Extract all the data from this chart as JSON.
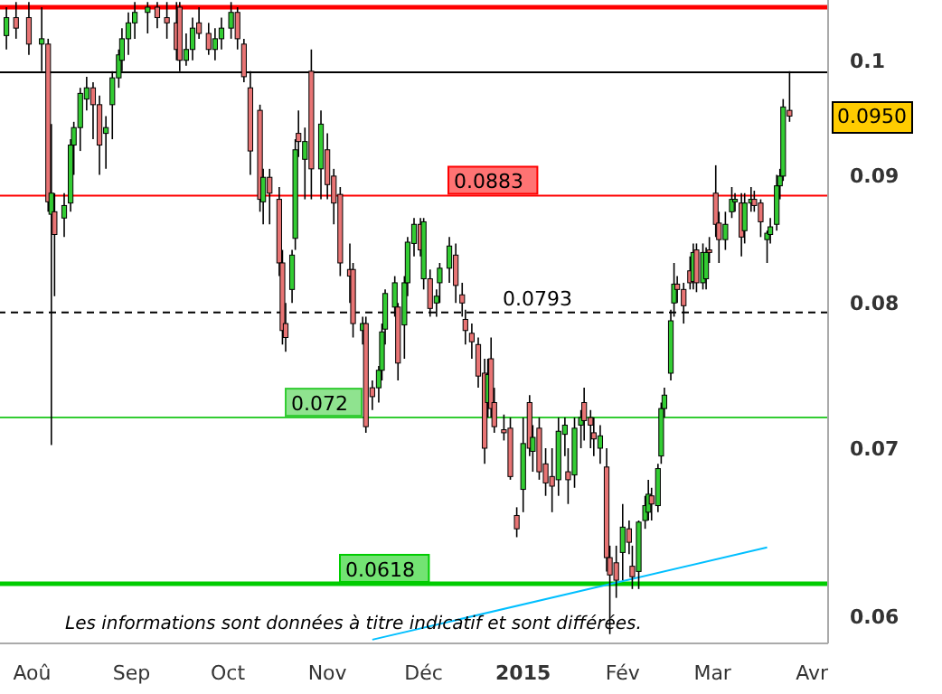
{
  "chart_data": {
    "type": "candlestick",
    "log": "y",
    "x": [
      "2014-07-24",
      "2014-07-27",
      "2014-07-31",
      "2014-08-04",
      "2014-08-06",
      "2014-08-07",
      "2014-08-08",
      "2014-08-11",
      "2014-08-13",
      "2014-08-14",
      "2014-08-16",
      "2014-08-18",
      "2014-08-20",
      "2014-08-22",
      "2014-08-24",
      "2014-08-26",
      "2014-08-28",
      "2014-08-29",
      "2014-08-31",
      "2014-09-02",
      "2014-09-06",
      "2014-09-09",
      "2014-09-12",
      "2014-09-15",
      "2014-09-16",
      "2014-09-18",
      "2014-09-20",
      "2014-09-22",
      "2014-09-25",
      "2014-09-27",
      "2014-09-29",
      "2014-10-02",
      "2014-10-04",
      "2014-10-06",
      "2014-10-08",
      "2014-10-11",
      "2014-10-12",
      "2014-10-14",
      "2014-10-17",
      "2014-10-18",
      "2014-10-19",
      "2014-10-21",
      "2014-10-22",
      "2014-10-23",
      "2014-10-25",
      "2014-10-27",
      "2014-10-30",
      "2014-11-01",
      "2014-11-03",
      "2014-11-05",
      "2014-11-08",
      "2014-11-09",
      "2014-11-12",
      "2014-11-13",
      "2014-11-15",
      "2014-11-17",
      "2014-11-18",
      "2014-11-19",
      "2014-11-22",
      "2014-11-23",
      "2014-11-25",
      "2014-11-26",
      "2014-11-28",
      "2014-11-30",
      "2014-12-01",
      "2014-12-03",
      "2014-12-05",
      "2014-12-06",
      "2014-12-09",
      "2014-12-11",
      "2014-12-13",
      "2014-12-14",
      "2014-12-16",
      "2014-12-18",
      "2014-12-20",
      "2014-12-21",
      "2014-12-22",
      "2014-12-23",
      "2014-12-26",
      "2014-12-28",
      "2014-12-30",
      "2015-01-01",
      "2015-01-03",
      "2015-01-04",
      "2015-01-06",
      "2015-01-08",
      "2015-01-10",
      "2015-01-12",
      "2015-01-14",
      "2015-01-15",
      "2015-01-17",
      "2015-01-19",
      "2015-01-20",
      "2015-01-22",
      "2015-01-23",
      "2015-01-25",
      "2015-01-27",
      "2015-01-28",
      "2015-01-30",
      "2015-02-01",
      "2015-02-03",
      "2015-02-04",
      "2015-02-06",
      "2015-02-08",
      "2015-02-09",
      "2015-02-10",
      "2015-02-12",
      "2015-02-13",
      "2015-02-14",
      "2015-02-16",
      "2015-02-17",
      "2015-02-18",
      "2015-02-20",
      "2015-02-22",
      "2015-02-23",
      "2015-02-24",
      "2015-02-26",
      "2015-02-27",
      "2015-02-28",
      "2015-03-02",
      "2015-03-03",
      "2015-03-05",
      "2015-03-07",
      "2015-03-08",
      "2015-03-10",
      "2015-03-11",
      "2015-03-13",
      "2015-03-14",
      "2015-03-16",
      "2015-03-18",
      "2015-03-19",
      "2015-03-21",
      "2015-03-22",
      "2015-03-23",
      "2015-03-25"
    ],
    "ohlc": [
      [
        0.1023,
        0.105,
        0.101,
        0.104
      ],
      [
        0.104,
        0.1055,
        0.102,
        0.103
      ],
      [
        0.104,
        0.1055,
        0.1005,
        0.1015
      ],
      [
        0.1015,
        0.105,
        0.099,
        0.102
      ],
      [
        0.1015,
        0.102,
        0.087,
        0.0878
      ],
      [
        0.0868,
        0.0943,
        0.0702,
        0.0885
      ],
      [
        0.087,
        0.0885,
        0.0805,
        0.0852
      ],
      [
        0.0865,
        0.0885,
        0.085,
        0.0875
      ],
      [
        0.0877,
        0.093,
        0.087,
        0.0925
      ],
      [
        0.0925,
        0.0945,
        0.09,
        0.094
      ],
      [
        0.094,
        0.0975,
        0.092,
        0.097
      ],
      [
        0.0965,
        0.0985,
        0.0955,
        0.0975
      ],
      [
        0.0975,
        0.098,
        0.093,
        0.096
      ],
      [
        0.096,
        0.0968,
        0.09,
        0.0925
      ],
      [
        0.0935,
        0.095,
        0.0905,
        0.094
      ],
      [
        0.096,
        0.099,
        0.093,
        0.0984
      ],
      [
        0.0984,
        0.101,
        0.0975,
        0.1005
      ],
      [
        0.1,
        0.103,
        0.099,
        0.102
      ],
      [
        0.102,
        0.1045,
        0.1005,
        0.1035
      ],
      [
        0.1035,
        0.1055,
        0.102,
        0.1045
      ],
      [
        0.1045,
        0.1055,
        0.1025,
        0.105
      ],
      [
        0.105,
        0.1055,
        0.103,
        0.104
      ],
      [
        0.104,
        0.1055,
        0.102,
        0.1035
      ],
      [
        0.1035,
        0.1055,
        0.1,
        0.101
      ],
      [
        0.105,
        0.1055,
        0.099,
        0.1
      ],
      [
        0.1,
        0.1025,
        0.0995,
        0.101
      ],
      [
        0.101,
        0.104,
        0.1,
        0.103
      ],
      [
        0.1035,
        0.105,
        0.102,
        0.1025
      ],
      [
        0.1025,
        0.1035,
        0.1005,
        0.101
      ],
      [
        0.101,
        0.103,
        0.1,
        0.102
      ],
      [
        0.102,
        0.104,
        0.101,
        0.103
      ],
      [
        0.103,
        0.1055,
        0.102,
        0.1045
      ],
      [
        0.1045,
        0.105,
        0.101,
        0.102
      ],
      [
        0.1015,
        0.102,
        0.098,
        0.0985
      ],
      [
        0.0975,
        0.099,
        0.09,
        0.092
      ],
      [
        0.0955,
        0.096,
        0.087,
        0.088
      ],
      [
        0.0878,
        0.0905,
        0.086,
        0.0898
      ],
      [
        0.0898,
        0.0905,
        0.086,
        0.0885
      ],
      [
        0.088,
        0.089,
        0.082,
        0.083
      ],
      [
        0.083,
        0.084,
        0.077,
        0.078
      ],
      [
        0.0785,
        0.08,
        0.0765,
        0.0775
      ],
      [
        0.081,
        0.084,
        0.08,
        0.0836
      ],
      [
        0.0849,
        0.093,
        0.084,
        0.0921
      ],
      [
        0.0935,
        0.0955,
        0.0915,
        0.0928
      ],
      [
        0.0913,
        0.094,
        0.088,
        0.0928
      ],
      [
        0.099,
        0.101,
        0.088,
        0.0905
      ],
      [
        0.0905,
        0.0955,
        0.088,
        0.0943
      ],
      [
        0.0921,
        0.0935,
        0.088,
        0.0892
      ],
      [
        0.0899,
        0.0905,
        0.086,
        0.0877
      ],
      [
        0.0884,
        0.089,
        0.082,
        0.083
      ],
      [
        0.0825,
        0.0845,
        0.08,
        0.082
      ],
      [
        0.0825,
        0.083,
        0.0775,
        0.0785
      ],
      [
        0.078,
        0.079,
        0.077,
        0.0785
      ],
      [
        0.0785,
        0.079,
        0.071,
        0.0714
      ],
      [
        0.074,
        0.0745,
        0.0725,
        0.0734
      ],
      [
        0.074,
        0.0755,
        0.073,
        0.0752
      ],
      [
        0.0752,
        0.0785,
        0.0745,
        0.0779
      ],
      [
        0.0781,
        0.081,
        0.077,
        0.0807
      ],
      [
        0.0797,
        0.082,
        0.079,
        0.0815
      ],
      [
        0.0797,
        0.08,
        0.0745,
        0.0757
      ],
      [
        0.0784,
        0.082,
        0.076,
        0.0815
      ],
      [
        0.0815,
        0.085,
        0.0805,
        0.0846
      ],
      [
        0.0845,
        0.0865,
        0.0835,
        0.086
      ],
      [
        0.086,
        0.0865,
        0.0835,
        0.084
      ],
      [
        0.0818,
        0.0865,
        0.081,
        0.0862
      ],
      [
        0.0818,
        0.0825,
        0.079,
        0.0796
      ],
      [
        0.08,
        0.081,
        0.079,
        0.0805
      ],
      [
        0.0815,
        0.083,
        0.08,
        0.0826
      ],
      [
        0.0826,
        0.085,
        0.0815,
        0.0843
      ],
      [
        0.0836,
        0.0845,
        0.08,
        0.0813
      ],
      [
        0.0806,
        0.0815,
        0.079,
        0.08
      ],
      [
        0.0788,
        0.0795,
        0.077,
        0.078
      ],
      [
        0.0778,
        0.0785,
        0.076,
        0.0772
      ],
      [
        0.077,
        0.0775,
        0.074,
        0.0748
      ],
      [
        0.075,
        0.076,
        0.069,
        0.07
      ],
      [
        0.073,
        0.076,
        0.072,
        0.0749
      ],
      [
        0.076,
        0.0775,
        0.072,
        0.0726
      ],
      [
        0.073,
        0.074,
        0.071,
        0.0714
      ],
      [
        0.0712,
        0.0722,
        0.0705,
        0.071
      ],
      [
        0.0713,
        0.072,
        0.068,
        0.0682
      ],
      [
        0.0658,
        0.0663,
        0.0645,
        0.065
      ],
      [
        0.0674,
        0.072,
        0.066,
        0.0703
      ],
      [
        0.073,
        0.0735,
        0.0695,
        0.07
      ],
      [
        0.0698,
        0.0715,
        0.0685,
        0.0707
      ],
      [
        0.0713,
        0.072,
        0.068,
        0.0685
      ],
      [
        0.069,
        0.07,
        0.067,
        0.0678
      ],
      [
        0.0682,
        0.07,
        0.066,
        0.0676
      ],
      [
        0.068,
        0.072,
        0.067,
        0.0711
      ],
      [
        0.0709,
        0.072,
        0.0695,
        0.0715
      ],
      [
        0.0685,
        0.07,
        0.0665,
        0.068
      ],
      [
        0.0683,
        0.072,
        0.0675,
        0.0713
      ],
      [
        0.0715,
        0.0725,
        0.07,
        0.072
      ],
      [
        0.073,
        0.074,
        0.0705,
        0.0718
      ],
      [
        0.072,
        0.0725,
        0.07,
        0.0715
      ],
      [
        0.071,
        0.072,
        0.0695,
        0.0706
      ],
      [
        0.07,
        0.0715,
        0.069,
        0.0708
      ],
      [
        0.0688,
        0.07,
        0.0625,
        0.0633
      ],
      [
        0.0633,
        0.064,
        0.059,
        0.0623
      ],
      [
        0.063,
        0.064,
        0.061,
        0.062
      ],
      [
        0.0636,
        0.0665,
        0.062,
        0.0651
      ],
      [
        0.065,
        0.0655,
        0.0635,
        0.0642
      ],
      [
        0.0628,
        0.064,
        0.0615,
        0.0622
      ],
      [
        0.0625,
        0.0655,
        0.0615,
        0.0654
      ],
      [
        0.0655,
        0.067,
        0.065,
        0.0664
      ],
      [
        0.066,
        0.068,
        0.0655,
        0.0671
      ],
      [
        0.067,
        0.0675,
        0.0655,
        0.0665
      ],
      [
        0.0664,
        0.069,
        0.066,
        0.0687
      ],
      [
        0.0695,
        0.073,
        0.069,
        0.0726
      ],
      [
        0.0726,
        0.074,
        0.072,
        0.0735
      ],
      [
        0.075,
        0.0795,
        0.0745,
        0.0787
      ],
      [
        0.08,
        0.083,
        0.079,
        0.0814
      ],
      [
        0.0814,
        0.082,
        0.08,
        0.081
      ],
      [
        0.081,
        0.0815,
        0.0785,
        0.0798
      ],
      [
        0.0824,
        0.0835,
        0.081,
        0.0815
      ],
      [
        0.0816,
        0.0845,
        0.081,
        0.0838
      ],
      [
        0.084,
        0.0845,
        0.0808,
        0.0815
      ],
      [
        0.0815,
        0.0845,
        0.081,
        0.0838
      ],
      [
        0.0818,
        0.0842,
        0.081,
        0.0838
      ],
      [
        0.084,
        0.085,
        0.083,
        0.0838
      ],
      [
        0.0885,
        0.0908,
        0.085,
        0.086
      ],
      [
        0.0861,
        0.087,
        0.083,
        0.0848
      ],
      [
        0.0848,
        0.087,
        0.084,
        0.086
      ],
      [
        0.087,
        0.089,
        0.0865,
        0.088
      ],
      [
        0.0878,
        0.0885,
        0.087,
        0.088
      ],
      [
        0.0877,
        0.0885,
        0.0835,
        0.085
      ],
      [
        0.0855,
        0.0885,
        0.0845,
        0.0877
      ],
      [
        0.0877,
        0.089,
        0.087,
        0.088
      ],
      [
        0.088,
        0.0887,
        0.087,
        0.0875
      ],
      [
        0.0877,
        0.088,
        0.085,
        0.0862
      ],
      [
        0.0848,
        0.0855,
        0.083,
        0.0853
      ],
      [
        0.0852,
        0.0865,
        0.0845,
        0.0858
      ],
      [
        0.086,
        0.09,
        0.0855,
        0.0891
      ],
      [
        0.0891,
        0.0905,
        0.088,
        0.0899
      ],
      [
        0.0899,
        0.0965,
        0.0895,
        0.0958
      ],
      [
        0.0955,
        0.099,
        0.0945,
        0.095
      ]
    ],
    "series": [
      {
        "type": "line",
        "color": "#00bfff",
        "x": [
          "2014-11-15",
          "2015-03-18"
        ],
        "values": [
          0.0587,
          0.0639
        ]
      }
    ],
    "xlim": [
      "2014-07-22",
      "2015-04-06"
    ],
    "xticks": [
      {
        "value": "2014-08-01",
        "label": "Aoû"
      },
      {
        "value": "2014-09-01",
        "label": "Sep"
      },
      {
        "value": "2014-10-01",
        "label": "Oct"
      },
      {
        "value": "2014-11-01",
        "label": "Nov"
      },
      {
        "value": "2014-12-01",
        "label": "Déc"
      },
      {
        "value": "2015-01-01",
        "label": "2015"
      },
      {
        "value": "2015-02-01",
        "label": "Fév"
      },
      {
        "value": "2015-03-01",
        "label": "Mar"
      },
      {
        "value": "2015-04-01",
        "label": "Avr"
      }
    ],
    "ylim": [
      0.0585,
      0.1057
    ],
    "yticks": [
      0.06,
      0.07,
      0.08,
      0.09,
      0.1
    ],
    "ref_lines": [
      {
        "axis": "y",
        "value": 0.105,
        "color": "#ff0000"
      },
      {
        "axis": "y",
        "value": 0.0989,
        "color": "#000000"
      },
      {
        "axis": "y",
        "value": 0.0883,
        "label": "0.0883",
        "color": "#ff0000"
      },
      {
        "axis": "y",
        "value": 0.0793,
        "label": "0.0793",
        "color": "#000000",
        "line_style": "dashed"
      },
      {
        "axis": "y",
        "value": 0.072,
        "label": "0.072",
        "color": "#33cc33"
      },
      {
        "axis": "y",
        "value": 0.0618,
        "label": "0.0618",
        "color": "#00cc00"
      }
    ],
    "annotations": [
      "0.0950",
      "Les informations sont données à titre indicatif et sont différées."
    ]
  }
}
